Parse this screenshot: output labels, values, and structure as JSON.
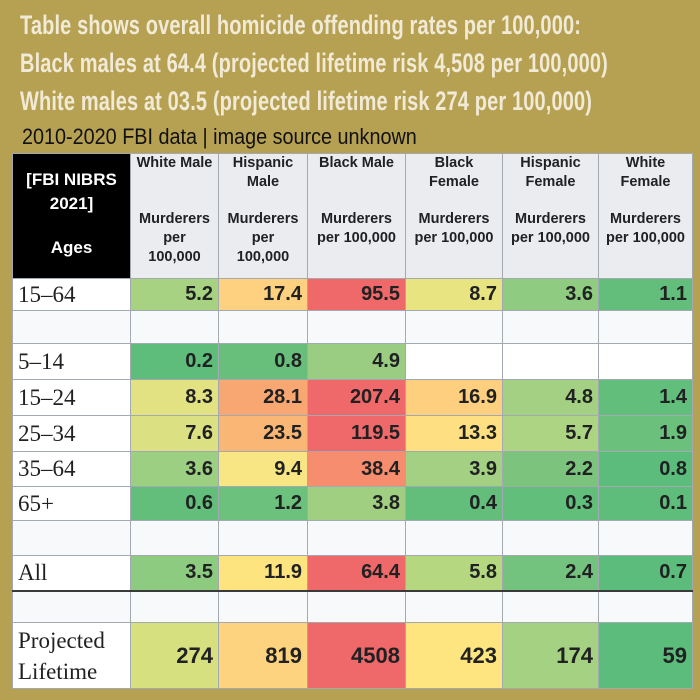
{
  "title_lines": [
    "Table shows overall homicide offending rates per 100,000:",
    "Black males at 64.4 (projected lifetime risk 4,508 per 100,000)",
    "White males at 03.5 (projected lifetime risk 274 per 100,000)"
  ],
  "subtitle": "2010-2020 FBI data | image source unknown",
  "table": {
    "corner_line1": "[FBI NIBRS 2021]",
    "corner_line2": "Ages",
    "columns": [
      {
        "name": "White Male",
        "unit": "Murderers per 100,000"
      },
      {
        "name": "Hispanic Male",
        "unit": "Murderers per 100,000"
      },
      {
        "name": "Black Male",
        "unit": "Murderers per 100,000"
      },
      {
        "name": "Black Female",
        "unit": "Murderers per 100,000"
      },
      {
        "name": "Hispanic Female",
        "unit": "Murderers per 100,000"
      },
      {
        "name": "White Female",
        "unit": "Murderers per 100,000"
      }
    ],
    "rows": [
      {
        "label": "15–64",
        "values": [
          "5.2",
          "17.4",
          "95.5",
          "8.7",
          "3.6",
          "1.1"
        ],
        "colors": [
          "#a6d282",
          "#fdd17f",
          "#f0696a",
          "#e9e482",
          "#8fcb80",
          "#63be7b"
        ]
      },
      {
        "label": "",
        "blank": true
      },
      {
        "label": "5–14",
        "values": [
          "0.2",
          "0.8",
          "4.9",
          "",
          "",
          ""
        ],
        "colors": [
          "#5fbd7b",
          "#68bf7c",
          "#9acd81",
          "#ffffff",
          "#ffffff",
          "#ffffff"
        ]
      },
      {
        "label": "15–24",
        "values": [
          "8.3",
          "28.1",
          "207.4",
          "16.9",
          "4.8",
          "1.4"
        ],
        "colors": [
          "#e2e283",
          "#f9a772",
          "#f0696a",
          "#fdcf7e",
          "#a3d082",
          "#62be7b"
        ]
      },
      {
        "label": "25–34",
        "values": [
          "7.6",
          "23.5",
          "119.5",
          "13.3",
          "5.7",
          "1.9"
        ],
        "colors": [
          "#dbe083",
          "#fab675",
          "#f0696a",
          "#fedf81",
          "#acd483",
          "#6bc07c"
        ]
      },
      {
        "label": "35–64",
        "values": [
          "3.6",
          "9.4",
          "38.4",
          "3.9",
          "2.2",
          "0.8"
        ],
        "colors": [
          "#9ccf81",
          "#f7e683",
          "#f58d6e",
          "#a3d082",
          "#7cc47e",
          "#5cbc7b"
        ]
      },
      {
        "label": "65+",
        "values": [
          "0.6",
          "1.2",
          "3.8",
          "0.4",
          "0.3",
          "0.1"
        ],
        "colors": [
          "#63be7b",
          "#6cc17c",
          "#a0cf81",
          "#63be7b",
          "#62be7b",
          "#5fbd7b"
        ]
      },
      {
        "label": "",
        "blank": true
      },
      {
        "label": "All",
        "values": [
          "3.5",
          "11.9",
          "64.4",
          "5.8",
          "2.4",
          "0.7"
        ],
        "colors": [
          "#8ccb80",
          "#fde47f",
          "#f0696a",
          "#b5d780",
          "#73c27d",
          "#5cbc7b"
        ]
      },
      {
        "label": "",
        "blank": true
      },
      {
        "label": "Projected Lifetime",
        "values": [
          "274",
          "819",
          "4508",
          "423",
          "174",
          "59"
        ],
        "colors": [
          "#d6e07f",
          "#fdd37f",
          "#f0696a",
          "#fee580",
          "#a4d282",
          "#5cbc7b"
        ]
      }
    ]
  }
}
